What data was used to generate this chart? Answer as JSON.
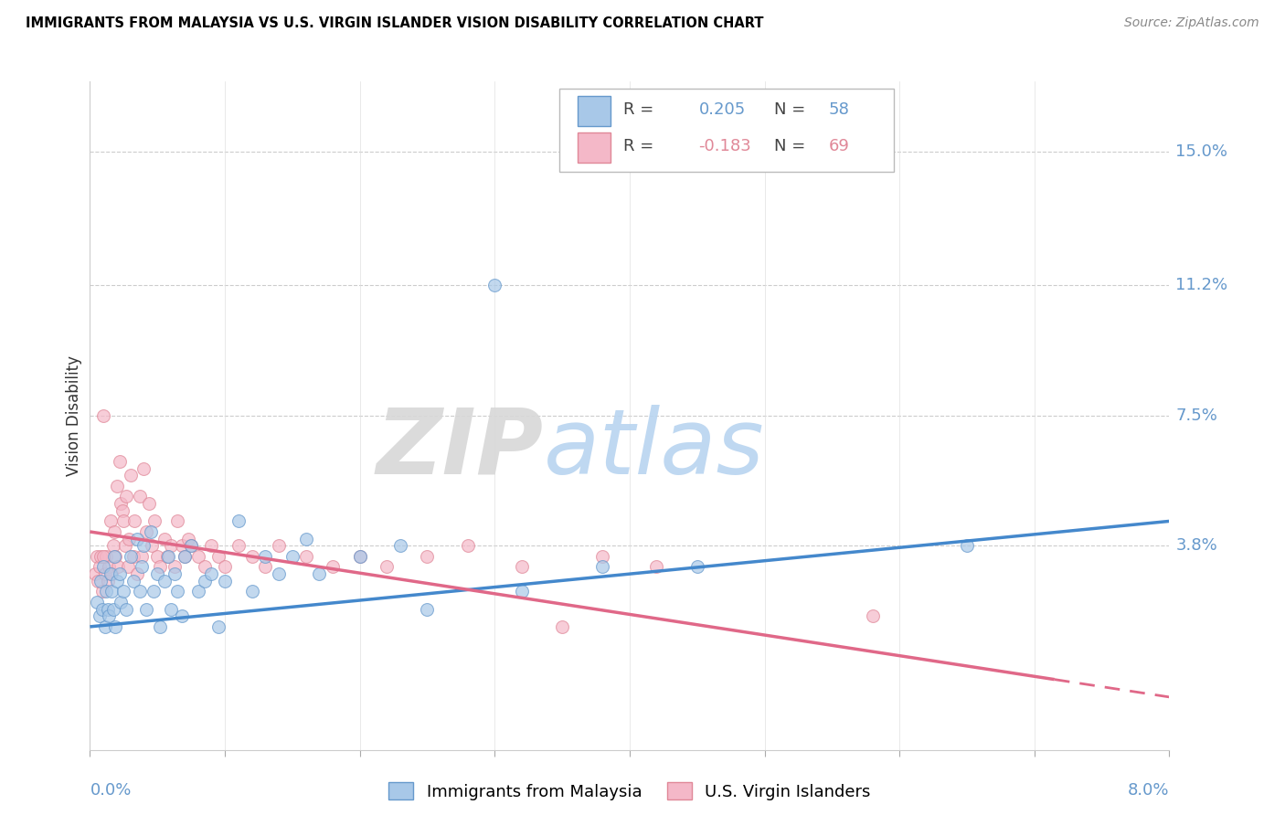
{
  "title": "IMMIGRANTS FROM MALAYSIA VS U.S. VIRGIN ISLANDER VISION DISABILITY CORRELATION CHART",
  "source": "Source: ZipAtlas.com",
  "ylabel": "Vision Disability",
  "xlim": [
    0.0,
    8.0
  ],
  "ylim": [
    -2.0,
    17.0
  ],
  "yticks_vals": [
    3.8,
    7.5,
    11.2,
    15.0
  ],
  "xticks": [
    0.0,
    1.0,
    2.0,
    3.0,
    4.0,
    5.0,
    6.0,
    7.0,
    8.0
  ],
  "blue_R": 0.205,
  "blue_N": 58,
  "pink_R": -0.183,
  "pink_N": 69,
  "blue_color": "#a8c8e8",
  "pink_color": "#f4b8c8",
  "blue_edge_color": "#6699cc",
  "pink_edge_color": "#e08898",
  "blue_line_color": "#4488cc",
  "pink_line_color": "#e06888",
  "legend_label_blue": "Immigrants from Malaysia",
  "legend_label_pink": "U.S. Virgin Islanders",
  "watermark_zip": "ZIP",
  "watermark_atlas": "atlas",
  "axis_label_color": "#6699cc",
  "blue_scatter_x": [
    0.05,
    0.07,
    0.08,
    0.09,
    0.1,
    0.11,
    0.12,
    0.13,
    0.14,
    0.15,
    0.16,
    0.17,
    0.18,
    0.19,
    0.2,
    0.22,
    0.23,
    0.25,
    0.27,
    0.3,
    0.32,
    0.35,
    0.37,
    0.38,
    0.4,
    0.42,
    0.45,
    0.47,
    0.5,
    0.52,
    0.55,
    0.58,
    0.6,
    0.63,
    0.65,
    0.68,
    0.7,
    0.75,
    0.8,
    0.85,
    0.9,
    0.95,
    1.0,
    1.1,
    1.2,
    1.3,
    1.4,
    1.5,
    1.6,
    1.7,
    2.0,
    2.3,
    2.5,
    3.0,
    3.2,
    4.5,
    6.5,
    3.8
  ],
  "blue_scatter_y": [
    2.2,
    1.8,
    2.8,
    2.0,
    3.2,
    1.5,
    2.5,
    2.0,
    1.8,
    3.0,
    2.5,
    2.0,
    3.5,
    1.5,
    2.8,
    3.0,
    2.2,
    2.5,
    2.0,
    3.5,
    2.8,
    4.0,
    2.5,
    3.2,
    3.8,
    2.0,
    4.2,
    2.5,
    3.0,
    1.5,
    2.8,
    3.5,
    2.0,
    3.0,
    2.5,
    1.8,
    3.5,
    3.8,
    2.5,
    2.8,
    3.0,
    1.5,
    2.8,
    4.5,
    2.5,
    3.5,
    3.0,
    3.5,
    4.0,
    3.0,
    3.5,
    3.8,
    2.0,
    11.2,
    2.5,
    3.2,
    3.8,
    3.2
  ],
  "pink_scatter_x": [
    0.04,
    0.05,
    0.06,
    0.07,
    0.08,
    0.09,
    0.1,
    0.11,
    0.12,
    0.13,
    0.14,
    0.15,
    0.16,
    0.17,
    0.18,
    0.19,
    0.2,
    0.21,
    0.22,
    0.23,
    0.24,
    0.25,
    0.26,
    0.27,
    0.28,
    0.29,
    0.3,
    0.32,
    0.33,
    0.35,
    0.37,
    0.38,
    0.4,
    0.42,
    0.44,
    0.46,
    0.48,
    0.5,
    0.52,
    0.55,
    0.57,
    0.6,
    0.63,
    0.65,
    0.68,
    0.7,
    0.73,
    0.75,
    0.8,
    0.85,
    0.9,
    0.95,
    1.0,
    1.1,
    1.2,
    1.3,
    1.4,
    1.6,
    1.8,
    2.0,
    2.2,
    2.5,
    2.8,
    3.2,
    3.5,
    3.8,
    4.2,
    5.8,
    0.1
  ],
  "pink_scatter_y": [
    3.0,
    3.5,
    2.8,
    3.2,
    3.5,
    2.5,
    7.5,
    3.0,
    3.5,
    2.8,
    3.2,
    4.5,
    3.0,
    3.8,
    4.2,
    3.5,
    5.5,
    3.2,
    6.2,
    5.0,
    4.8,
    4.5,
    3.8,
    5.2,
    3.2,
    4.0,
    5.8,
    3.5,
    4.5,
    3.0,
    5.2,
    3.5,
    6.0,
    4.2,
    5.0,
    3.8,
    4.5,
    3.5,
    3.2,
    4.0,
    3.5,
    3.8,
    3.2,
    4.5,
    3.8,
    3.5,
    4.0,
    3.8,
    3.5,
    3.2,
    3.8,
    3.5,
    3.2,
    3.8,
    3.5,
    3.2,
    3.8,
    3.5,
    3.2,
    3.5,
    3.2,
    3.5,
    3.8,
    3.2,
    1.5,
    3.5,
    3.2,
    1.8,
    3.5
  ],
  "blue_trendline_x": [
    0.0,
    8.0
  ],
  "blue_trendline_y": [
    1.5,
    4.5
  ],
  "pink_trendline_x": [
    0.0,
    8.0
  ],
  "pink_trendline_y": [
    4.2,
    -0.5
  ]
}
